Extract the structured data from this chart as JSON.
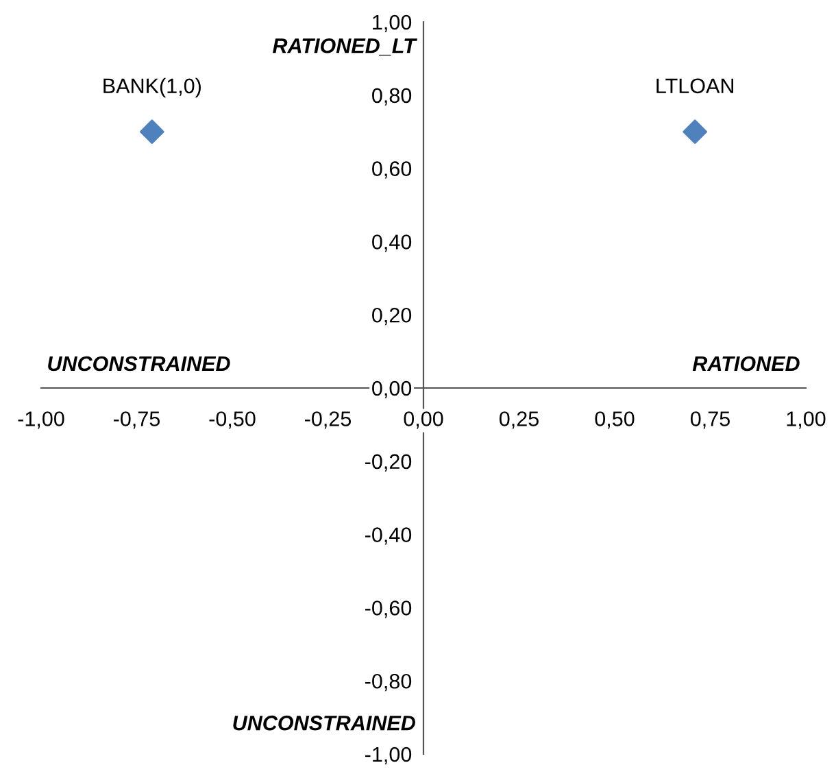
{
  "chart_data": {
    "type": "scatter",
    "x": [
      -0.71,
      0.71
    ],
    "series": [
      {
        "color": "#4f81bd",
        "values": [
          0.7,
          0.7
        ]
      }
    ],
    "marker": "diamond",
    "grid": false,
    "xlim": [
      -1,
      1
    ],
    "ylim": [
      -1,
      1
    ],
    "xticks": [
      {
        "value": -1,
        "label": "-1,00"
      },
      {
        "value": -0.75,
        "label": "-0,75"
      },
      {
        "value": -0.5,
        "label": "-0,50"
      },
      {
        "value": -0.25,
        "label": "-0,25"
      },
      {
        "value": 0,
        "label": "0,00"
      },
      {
        "value": 0.25,
        "label": "0,25"
      },
      {
        "value": 0.5,
        "label": "0,50"
      },
      {
        "value": 0.75,
        "label": "0,75"
      },
      {
        "value": 1,
        "label": "1,00"
      }
    ],
    "yticks": [
      {
        "value": -1,
        "label": "-1,00"
      },
      {
        "value": -0.8,
        "label": "-0,80"
      },
      {
        "value": -0.6,
        "label": "-0,60"
      },
      {
        "value": -0.4,
        "label": "-0,40"
      },
      {
        "value": -0.2,
        "label": "-0,20"
      },
      {
        "value": 0,
        "label": "0,00"
      },
      {
        "value": 0.2,
        "label": "0,20"
      },
      {
        "value": 0.4,
        "label": "0,40"
      },
      {
        "value": 0.6,
        "label": "0,60"
      },
      {
        "value": 0.8,
        "label": "0,80"
      },
      {
        "value": 1,
        "label": "1,00"
      }
    ],
    "annotations": [
      {
        "text": "BANK(1,0)",
        "x": -0.71,
        "y": 0.7
      },
      {
        "text": "LTLOAN",
        "x": 0.71,
        "y": 0.7
      },
      "RATIONED_LT",
      "UNCONSTRAINED",
      "UNCONSTRAINED",
      "RATIONED"
    ]
  }
}
